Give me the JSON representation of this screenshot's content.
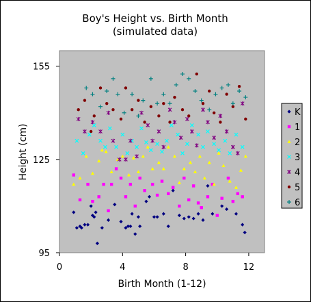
{
  "chart_data": {
    "type": "scatter",
    "title": "Boy's Height vs. Birth Month",
    "subtitle": "(simulated data)",
    "xlabel": "Birth Month (1-12)",
    "ylabel": "Height (cm)",
    "xlim": [
      0,
      13
    ],
    "ylim": [
      95,
      160
    ],
    "xticks": [
      "0",
      "4",
      "8",
      "12"
    ],
    "yticks": [
      "95",
      "125",
      "155"
    ],
    "plot_background": "#c0c0c0",
    "grid": false,
    "legend_position": "right",
    "series": [
      {
        "name": "K",
        "color": "#000080",
        "marker": "diamond",
        "points": [
          [
            0.9,
            108
          ],
          [
            1.1,
            103
          ],
          [
            1.3,
            103.5
          ],
          [
            1.4,
            103
          ],
          [
            1.6,
            104
          ],
          [
            1.8,
            104
          ],
          [
            2.0,
            110
          ],
          [
            2.1,
            107
          ],
          [
            2.2,
            106.5
          ],
          [
            2.3,
            108
          ],
          [
            2.4,
            98
          ],
          [
            2.7,
            103
          ],
          [
            3.1,
            105.5
          ],
          [
            3.5,
            110.5
          ],
          [
            3.9,
            105
          ],
          [
            4.2,
            103
          ],
          [
            4.35,
            103.5
          ],
          [
            4.5,
            103.5
          ],
          [
            4.6,
            107.5
          ],
          [
            4.8,
            101
          ],
          [
            5.0,
            106.5
          ],
          [
            5.1,
            103.5
          ],
          [
            5.5,
            111.5
          ],
          [
            5.7,
            113
          ],
          [
            6.0,
            106.5
          ],
          [
            6.2,
            106.5
          ],
          [
            6.6,
            107.5
          ],
          [
            6.9,
            103.5
          ],
          [
            7.2,
            115
          ],
          [
            7.6,
            107
          ],
          [
            7.9,
            106
          ],
          [
            8.2,
            106.5
          ],
          [
            8.5,
            106
          ],
          [
            8.8,
            107.5
          ],
          [
            9.1,
            105.5
          ],
          [
            9.4,
            116.5
          ],
          [
            9.7,
            107.5
          ],
          [
            10.3,
            110
          ],
          [
            10.6,
            109
          ],
          [
            11.2,
            107.5
          ],
          [
            11.6,
            104
          ],
          [
            11.75,
            101.5
          ]
        ]
      },
      {
        "name": "1",
        "color": "#ff00ff",
        "marker": "square",
        "points": [
          [
            0.9,
            120
          ],
          [
            1.3,
            112
          ],
          [
            1.8,
            117
          ],
          [
            2.1,
            111.5
          ],
          [
            2.5,
            113
          ],
          [
            2.8,
            117
          ],
          [
            3.1,
            108.5
          ],
          [
            3.3,
            117
          ],
          [
            3.6,
            122
          ],
          [
            3.9,
            119
          ],
          [
            4.2,
            113
          ],
          [
            4.5,
            117
          ],
          [
            4.8,
            110
          ],
          [
            5.1,
            119
          ],
          [
            5.4,
            115
          ],
          [
            5.9,
            117
          ],
          [
            6.2,
            113.5
          ],
          [
            6.5,
            118
          ],
          [
            6.9,
            114
          ],
          [
            7.2,
            116
          ],
          [
            7.6,
            110
          ],
          [
            7.9,
            119
          ],
          [
            8.2,
            112
          ],
          [
            8.5,
            116.5
          ],
          [
            8.8,
            111
          ],
          [
            9.0,
            109.5
          ],
          [
            9.4,
            113
          ],
          [
            9.7,
            117
          ],
          [
            10.0,
            107
          ],
          [
            10.3,
            112.5
          ],
          [
            10.7,
            119
          ],
          [
            11.0,
            111.5
          ],
          [
            11.3,
            114
          ],
          [
            11.6,
            113
          ]
        ]
      },
      {
        "name": "2",
        "color": "#ffff00",
        "marker": "triangle",
        "points": [
          [
            0.9,
            117
          ],
          [
            1.3,
            119
          ],
          [
            1.7,
            126
          ],
          [
            2.1,
            120.5
          ],
          [
            2.5,
            124.5
          ],
          [
            2.7,
            128
          ],
          [
            2.95,
            127.5
          ],
          [
            3.3,
            121
          ],
          [
            3.7,
            125
          ],
          [
            4.0,
            126
          ],
          [
            4.4,
            120
          ],
          [
            4.7,
            125.5
          ],
          [
            5.0,
            121
          ],
          [
            5.3,
            126
          ],
          [
            5.6,
            129
          ],
          [
            5.9,
            122
          ],
          [
            6.3,
            124
          ],
          [
            6.6,
            122
          ],
          [
            6.9,
            129
          ],
          [
            7.3,
            126
          ],
          [
            7.6,
            117.5
          ],
          [
            7.9,
            122
          ],
          [
            8.3,
            124
          ],
          [
            8.6,
            121
          ],
          [
            8.9,
            126
          ],
          [
            9.2,
            119
          ],
          [
            9.5,
            124
          ],
          [
            9.8,
            117
          ],
          [
            10.1,
            127
          ],
          [
            10.4,
            123
          ],
          [
            10.8,
            118
          ],
          [
            11.2,
            116
          ],
          [
            11.5,
            121.5
          ],
          [
            11.8,
            126
          ]
        ]
      },
      {
        "name": "3",
        "color": "#00ffff",
        "marker": "x",
        "points": [
          [
            1.1,
            131
          ],
          [
            1.5,
            127
          ],
          [
            1.9,
            133
          ],
          [
            2.2,
            136
          ],
          [
            2.6,
            131
          ],
          [
            2.9,
            129
          ],
          [
            3.2,
            135
          ],
          [
            3.6,
            129
          ],
          [
            4.0,
            133
          ],
          [
            4.3,
            127
          ],
          [
            4.6,
            131
          ],
          [
            4.9,
            129
          ],
          [
            5.2,
            135
          ],
          [
            5.5,
            130.5
          ],
          [
            5.8,
            128
          ],
          [
            6.2,
            130
          ],
          [
            6.5,
            127.5
          ],
          [
            6.8,
            131
          ],
          [
            7.1,
            136
          ],
          [
            7.5,
            133
          ],
          [
            7.8,
            127
          ],
          [
            8.1,
            130
          ],
          [
            8.4,
            136
          ],
          [
            8.8,
            133
          ],
          [
            9.1,
            129
          ],
          [
            9.4,
            134
          ],
          [
            9.8,
            130
          ],
          [
            10.1,
            128
          ],
          [
            10.5,
            131
          ],
          [
            10.8,
            127
          ],
          [
            11.2,
            133
          ],
          [
            11.6,
            129
          ]
        ]
      },
      {
        "name": "4",
        "color": "#800080",
        "marker": "star",
        "points": [
          [
            1.2,
            138
          ],
          [
            1.6,
            134
          ],
          [
            2.1,
            137
          ],
          [
            2.6,
            134
          ],
          [
            3.1,
            140
          ],
          [
            3.4,
            131
          ],
          [
            3.8,
            125
          ],
          [
            4.2,
            125
          ],
          [
            4.5,
            131
          ],
          [
            4.9,
            126
          ],
          [
            5.2,
            140
          ],
          [
            5.6,
            136
          ],
          [
            5.9,
            131
          ],
          [
            6.3,
            134
          ],
          [
            6.6,
            129
          ],
          [
            7.0,
            141
          ],
          [
            7.3,
            137
          ],
          [
            7.7,
            132
          ],
          [
            8.1,
            138
          ],
          [
            8.4,
            134
          ],
          [
            8.7,
            129.5
          ],
          [
            9.1,
            141
          ],
          [
            9.4,
            137
          ],
          [
            9.8,
            132
          ],
          [
            10.2,
            139
          ],
          [
            10.6,
            134
          ],
          [
            11.0,
            129
          ],
          [
            11.3,
            127
          ],
          [
            11.6,
            143
          ]
        ]
      },
      {
        "name": "5",
        "color": "#800000",
        "marker": "circle",
        "points": [
          [
            1.2,
            141
          ],
          [
            1.6,
            144
          ],
          [
            2.0,
            134
          ],
          [
            2.2,
            139
          ],
          [
            2.6,
            148
          ],
          [
            3.0,
            143
          ],
          [
            3.4,
            141
          ],
          [
            3.9,
            138
          ],
          [
            4.2,
            148
          ],
          [
            4.6,
            141
          ],
          [
            5.0,
            144
          ],
          [
            5.4,
            137
          ],
          [
            5.8,
            142
          ],
          [
            6.3,
            139
          ],
          [
            6.6,
            143
          ],
          [
            7.0,
            137
          ],
          [
            7.3,
            145
          ],
          [
            7.8,
            141
          ],
          [
            8.2,
            139
          ],
          [
            8.7,
            152.5
          ],
          [
            9.1,
            143
          ],
          [
            9.5,
            147
          ],
          [
            9.8,
            140
          ],
          [
            10.2,
            137
          ],
          [
            10.6,
            146
          ],
          [
            11.0,
            142
          ],
          [
            11.4,
            148.5
          ],
          [
            11.8,
            138
          ]
        ]
      },
      {
        "name": "6",
        "color": "#008080",
        "marker": "plus",
        "points": [
          [
            1.7,
            148
          ],
          [
            2.1,
            146
          ],
          [
            2.6,
            142
          ],
          [
            3.0,
            147
          ],
          [
            3.4,
            151
          ],
          [
            3.7,
            146
          ],
          [
            4.1,
            140
          ],
          [
            4.6,
            146
          ],
          [
            5.0,
            139
          ],
          [
            5.3,
            144
          ],
          [
            5.8,
            151
          ],
          [
            6.2,
            143
          ],
          [
            6.6,
            146
          ],
          [
            7.0,
            143
          ],
          [
            7.4,
            149
          ],
          [
            7.8,
            152.5
          ],
          [
            8.2,
            151
          ],
          [
            8.6,
            147
          ],
          [
            9.0,
            144
          ],
          [
            9.5,
            141
          ],
          [
            9.9,
            146
          ],
          [
            10.3,
            148
          ],
          [
            10.7,
            149
          ],
          [
            11.0,
            143
          ],
          [
            11.4,
            147
          ],
          [
            11.8,
            145
          ]
        ]
      }
    ]
  }
}
